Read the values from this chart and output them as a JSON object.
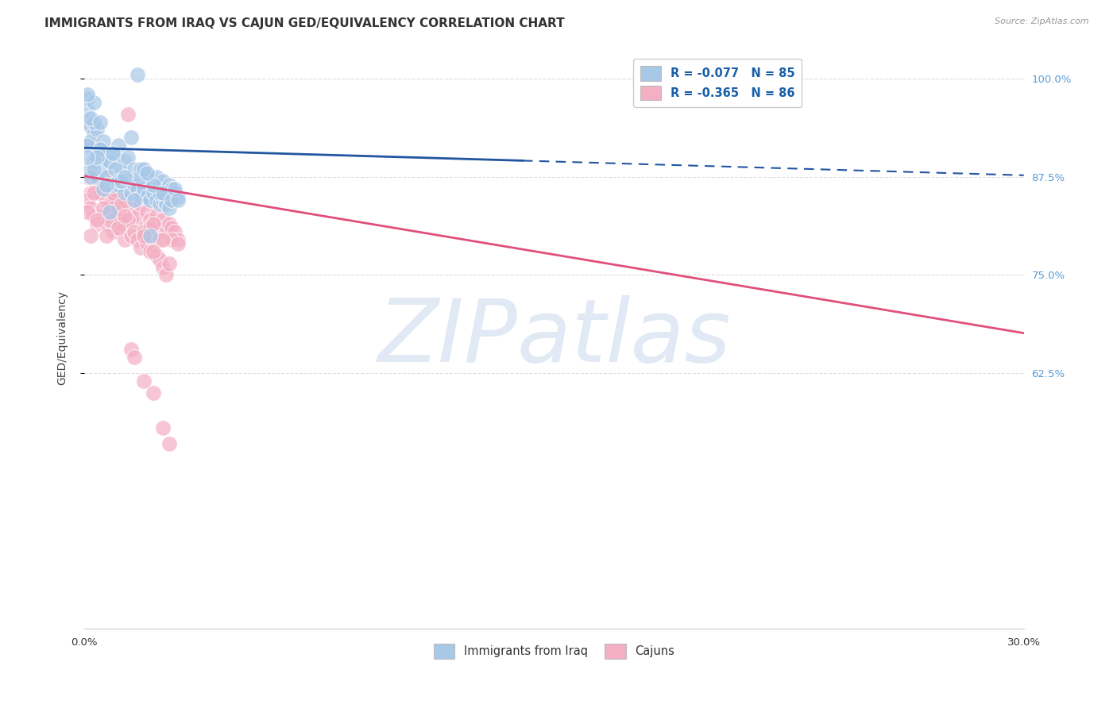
{
  "title": "IMMIGRANTS FROM IRAQ VS CAJUN GED/EQUIVALENCY CORRELATION CHART",
  "source": "Source: ZipAtlas.com",
  "ylabel": "GED/Equivalency",
  "yticks": [
    0.625,
    0.75,
    0.875,
    1.0
  ],
  "ytick_labels": [
    "62.5%",
    "75.0%",
    "87.5%",
    "100.0%"
  ],
  "xmin": 0.0,
  "xmax": 0.3,
  "ymin": 0.3,
  "ymax": 1.04,
  "legend_blue_label": "R = -0.077   N = 85",
  "legend_pink_label": "R = -0.365   N = 86",
  "watermark": "ZIPatlas",
  "blue_scatter": [
    [
      0.001,
      0.96
    ],
    [
      0.002,
      0.94
    ],
    [
      0.001,
      0.975
    ],
    [
      0.003,
      0.93
    ],
    [
      0.002,
      0.92
    ],
    [
      0.004,
      0.935
    ],
    [
      0.003,
      0.945
    ],
    [
      0.005,
      0.91
    ],
    [
      0.001,
      0.915
    ],
    [
      0.006,
      0.92
    ],
    [
      0.004,
      0.905
    ],
    [
      0.002,
      0.95
    ],
    [
      0.007,
      0.9
    ],
    [
      0.008,
      0.895
    ],
    [
      0.005,
      0.91
    ],
    [
      0.003,
      0.895
    ],
    [
      0.009,
      0.905
    ],
    [
      0.01,
      0.9
    ],
    [
      0.006,
      0.885
    ],
    [
      0.004,
      0.875
    ],
    [
      0.011,
      0.915
    ],
    [
      0.008,
      0.895
    ],
    [
      0.012,
      0.885
    ],
    [
      0.007,
      0.875
    ],
    [
      0.013,
      0.895
    ],
    [
      0.009,
      0.865
    ],
    [
      0.014,
      0.9
    ],
    [
      0.01,
      0.885
    ],
    [
      0.015,
      0.875
    ],
    [
      0.011,
      0.865
    ],
    [
      0.016,
      0.885
    ],
    [
      0.012,
      0.87
    ],
    [
      0.003,
      0.97
    ],
    [
      0.017,
      0.875
    ],
    [
      0.013,
      0.855
    ],
    [
      0.018,
      0.885
    ],
    [
      0.014,
      0.87
    ],
    [
      0.019,
      0.865
    ],
    [
      0.015,
      0.855
    ],
    [
      0.02,
      0.875
    ],
    [
      0.001,
      0.98
    ],
    [
      0.016,
      0.865
    ],
    [
      0.021,
      0.875
    ],
    [
      0.017,
      0.86
    ],
    [
      0.022,
      0.87
    ],
    [
      0.018,
      0.85
    ],
    [
      0.023,
      0.875
    ],
    [
      0.019,
      0.86
    ],
    [
      0.024,
      0.865
    ],
    [
      0.02,
      0.85
    ],
    [
      0.002,
      0.885
    ],
    [
      0.021,
      0.845
    ],
    [
      0.025,
      0.87
    ],
    [
      0.022,
      0.855
    ],
    [
      0.026,
      0.86
    ],
    [
      0.023,
      0.845
    ],
    [
      0.027,
      0.865
    ],
    [
      0.024,
      0.84
    ],
    [
      0.028,
      0.86
    ],
    [
      0.025,
      0.845
    ],
    [
      0.029,
      0.855
    ],
    [
      0.026,
      0.84
    ],
    [
      0.03,
      0.85
    ],
    [
      0.027,
      0.835
    ],
    [
      0.002,
      0.875
    ],
    [
      0.005,
      0.945
    ],
    [
      0.008,
      0.83
    ],
    [
      0.011,
      0.87
    ],
    [
      0.003,
      0.885
    ],
    [
      0.006,
      0.86
    ],
    [
      0.009,
      0.905
    ],
    [
      0.012,
      0.87
    ],
    [
      0.015,
      0.925
    ],
    [
      0.018,
      0.875
    ],
    [
      0.021,
      0.8
    ],
    [
      0.024,
      0.855
    ],
    [
      0.004,
      0.9
    ],
    [
      0.007,
      0.865
    ],
    [
      0.013,
      0.875
    ],
    [
      0.016,
      0.845
    ],
    [
      0.019,
      0.885
    ],
    [
      0.022,
      0.865
    ],
    [
      0.025,
      0.855
    ],
    [
      0.028,
      0.845
    ],
    [
      0.001,
      0.9
    ],
    [
      0.029,
      0.86
    ],
    [
      0.03,
      0.845
    ],
    [
      0.02,
      0.88
    ],
    [
      0.017,
      1.005
    ]
  ],
  "pink_scatter": [
    [
      0.001,
      0.945
    ],
    [
      0.002,
      0.915
    ],
    [
      0.001,
      0.875
    ],
    [
      0.003,
      0.89
    ],
    [
      0.002,
      0.855
    ],
    [
      0.004,
      0.875
    ],
    [
      0.003,
      0.855
    ],
    [
      0.005,
      0.86
    ],
    [
      0.001,
      0.845
    ],
    [
      0.006,
      0.875
    ],
    [
      0.004,
      0.855
    ],
    [
      0.002,
      0.835
    ],
    [
      0.007,
      0.845
    ],
    [
      0.008,
      0.835
    ],
    [
      0.005,
      0.855
    ],
    [
      0.003,
      0.825
    ],
    [
      0.009,
      0.84
    ],
    [
      0.01,
      0.845
    ],
    [
      0.006,
      0.825
    ],
    [
      0.004,
      0.815
    ],
    [
      0.011,
      0.855
    ],
    [
      0.008,
      0.84
    ],
    [
      0.012,
      0.83
    ],
    [
      0.007,
      0.815
    ],
    [
      0.013,
      0.845
    ],
    [
      0.009,
      0.805
    ],
    [
      0.014,
      0.955
    ],
    [
      0.01,
      0.83
    ],
    [
      0.015,
      0.82
    ],
    [
      0.011,
      0.81
    ],
    [
      0.016,
      0.835
    ],
    [
      0.012,
      0.815
    ],
    [
      0.017,
      0.825
    ],
    [
      0.013,
      0.795
    ],
    [
      0.018,
      0.84
    ],
    [
      0.014,
      0.82
    ],
    [
      0.019,
      0.81
    ],
    [
      0.015,
      0.8
    ],
    [
      0.02,
      0.83
    ],
    [
      0.016,
      0.805
    ],
    [
      0.021,
      0.82
    ],
    [
      0.017,
      0.795
    ],
    [
      0.022,
      0.815
    ],
    [
      0.018,
      0.785
    ],
    [
      0.023,
      0.825
    ],
    [
      0.019,
      0.805
    ],
    [
      0.024,
      0.81
    ],
    [
      0.02,
      0.79
    ],
    [
      0.025,
      0.82
    ],
    [
      0.021,
      0.78
    ],
    [
      0.026,
      0.805
    ],
    [
      0.022,
      0.8
    ],
    [
      0.027,
      0.815
    ],
    [
      0.023,
      0.775
    ],
    [
      0.028,
      0.81
    ],
    [
      0.024,
      0.77
    ],
    [
      0.029,
      0.805
    ],
    [
      0.025,
      0.76
    ],
    [
      0.03,
      0.795
    ],
    [
      0.026,
      0.75
    ],
    [
      0.027,
      0.765
    ],
    [
      0.001,
      0.83
    ],
    [
      0.002,
      0.8
    ],
    [
      0.005,
      0.87
    ],
    [
      0.008,
      0.82
    ],
    [
      0.011,
      0.81
    ],
    [
      0.003,
      0.855
    ],
    [
      0.006,
      0.835
    ],
    [
      0.009,
      0.855
    ],
    [
      0.012,
      0.84
    ],
    [
      0.018,
      0.87
    ],
    [
      0.021,
      0.81
    ],
    [
      0.024,
      0.795
    ],
    [
      0.004,
      0.82
    ],
    [
      0.007,
      0.8
    ],
    [
      0.013,
      0.825
    ],
    [
      0.019,
      0.8
    ],
    [
      0.022,
      0.815
    ],
    [
      0.028,
      0.795
    ],
    [
      0.03,
      0.79
    ],
    [
      0.025,
      0.795
    ],
    [
      0.022,
      0.78
    ],
    [
      0.015,
      0.655
    ],
    [
      0.016,
      0.645
    ],
    [
      0.019,
      0.615
    ],
    [
      0.022,
      0.6
    ],
    [
      0.025,
      0.555
    ],
    [
      0.027,
      0.535
    ]
  ],
  "blue_line_x": [
    0.0,
    0.3
  ],
  "blue_line_y": [
    0.912,
    0.877
  ],
  "blue_line_solid_end": 0.14,
  "pink_line_x": [
    0.0,
    0.3
  ],
  "pink_line_y": [
    0.876,
    0.676
  ],
  "blue_scatter_color": "#a8c8e8",
  "pink_scatter_color": "#f4afc4",
  "blue_line_color": "#2255a0",
  "pink_line_color": "#e0507a",
  "grid_color": "#dddddd",
  "bg_color": "#ffffff",
  "title_fontsize": 11,
  "source_fontsize": 8,
  "axis_label_fontsize": 10,
  "tick_fontsize": 9.5,
  "right_tick_color": "#5b9bd5",
  "legend_text_color": "#1a5fa8"
}
